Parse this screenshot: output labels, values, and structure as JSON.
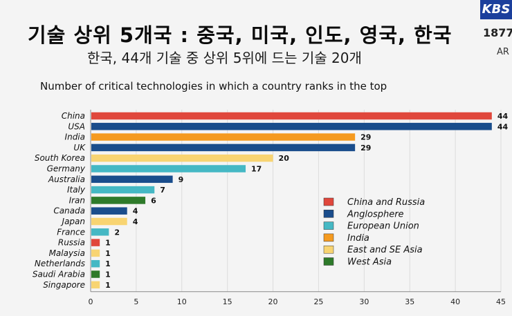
{
  "headline": "기술 상위 5개국 : 중국, 미국, 인도, 영국, 한국",
  "subline": "한국, 44개 기술 중 상위 5위에 드는 기술 20개",
  "logo_text": "KBS",
  "side_number": "1877",
  "side_text": "AR",
  "chart_data": {
    "type": "bar",
    "orientation": "horizontal",
    "title": "Number of critical technologies in which a country ranks in the top",
    "categories": [
      "China",
      "USA",
      "India",
      "UK",
      "South Korea",
      "Germany",
      "Australia",
      "Italy",
      "Iran",
      "Canada",
      "Japan",
      "France",
      "Russia",
      "Malaysia",
      "Netherlands",
      "Saudi Arabia",
      "Singapore"
    ],
    "values": [
      44,
      44,
      29,
      29,
      20,
      17,
      9,
      7,
      6,
      4,
      4,
      2,
      1,
      1,
      1,
      1,
      1
    ],
    "groups": [
      "China and Russia",
      "Anglosphere",
      "India",
      "Anglosphere",
      "East and SE Asia",
      "European Union",
      "Anglosphere",
      "European Union",
      "West Asia",
      "Anglosphere",
      "East and SE Asia",
      "European Union",
      "China and Russia",
      "East and SE Asia",
      "European Union",
      "West Asia",
      "East and SE Asia"
    ],
    "xlim": [
      0,
      45
    ],
    "xticks": [
      0,
      5,
      10,
      15,
      20,
      25,
      30,
      35,
      40,
      45
    ],
    "grid": "vertical",
    "legend_position": "center-right",
    "legend": [
      {
        "name": "China and Russia",
        "color": "#e0473c"
      },
      {
        "name": "Anglosphere",
        "color": "#1a4d8c"
      },
      {
        "name": "European Union",
        "color": "#45b8c4"
      },
      {
        "name": "India",
        "color": "#f59a1f"
      },
      {
        "name": "East and SE Asia",
        "color": "#f8d472"
      },
      {
        "name": "West Asia",
        "color": "#2e7a2a"
      }
    ]
  }
}
